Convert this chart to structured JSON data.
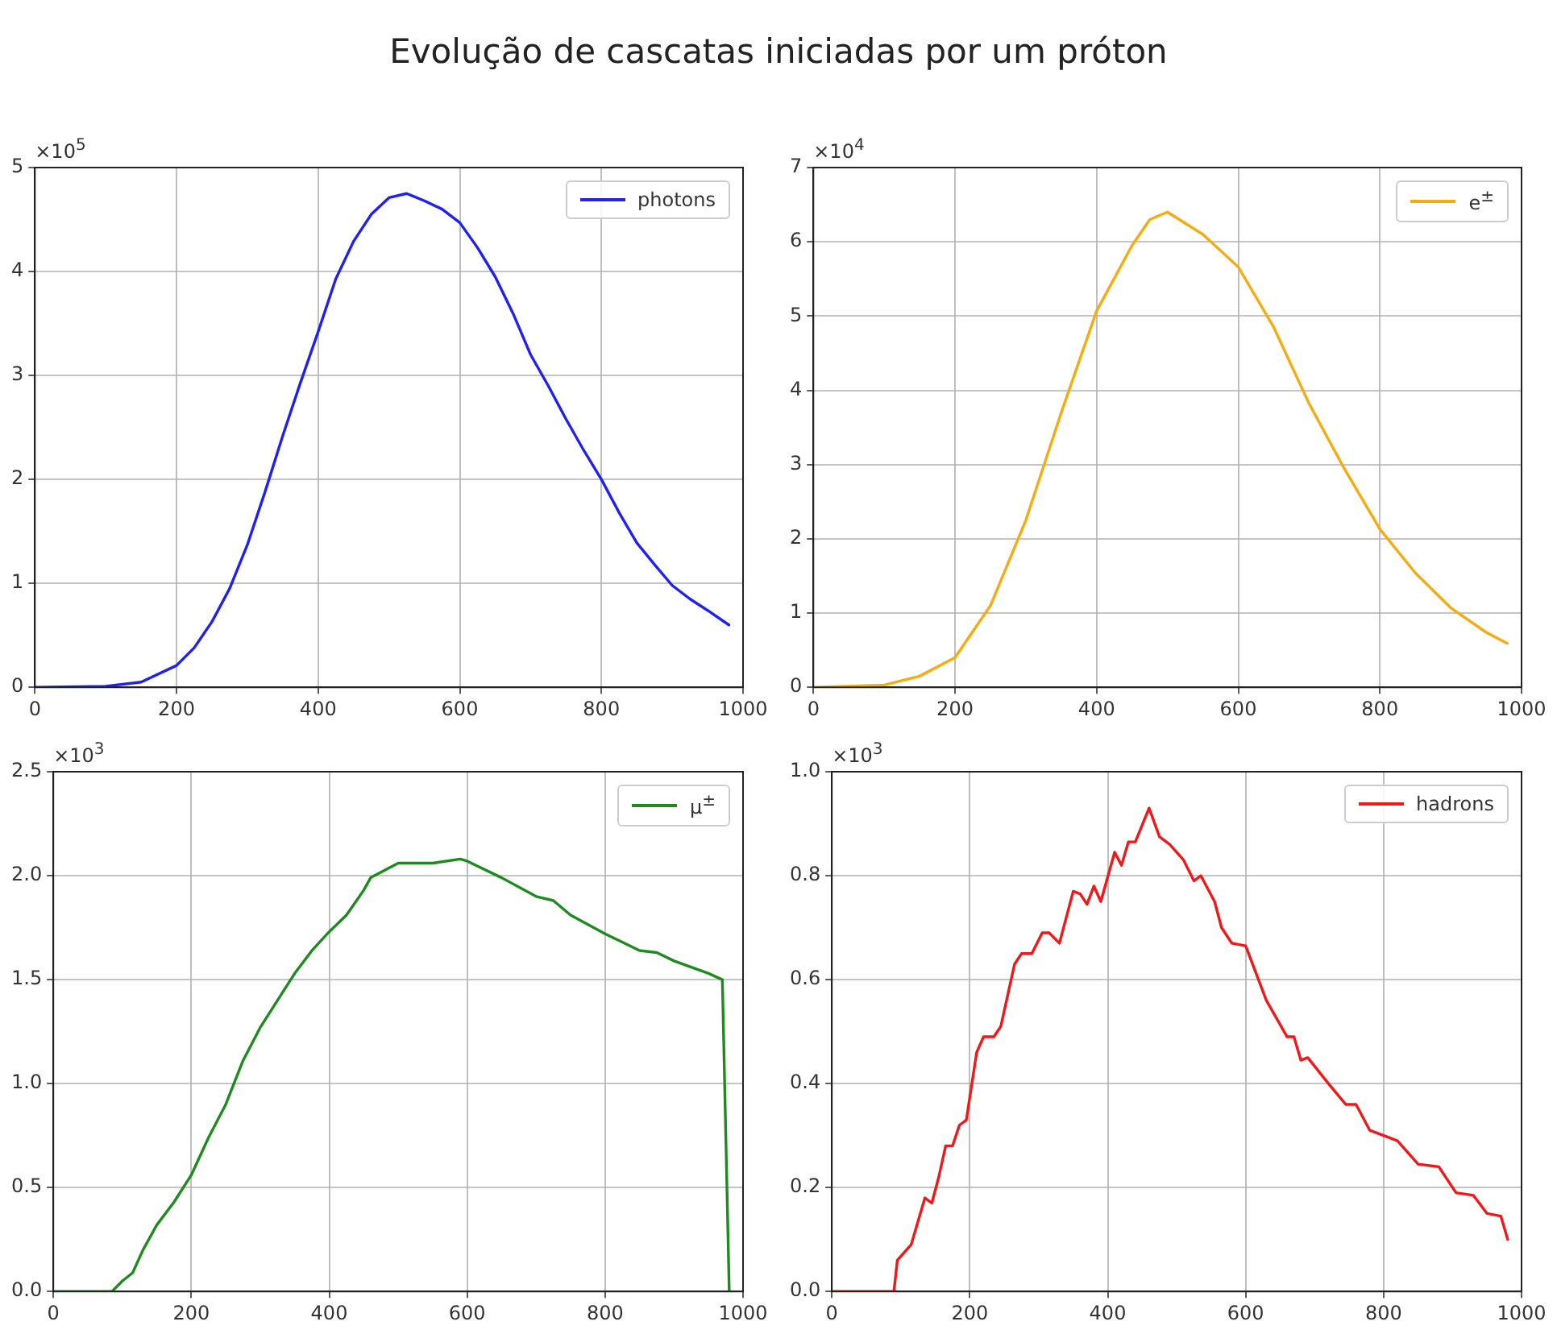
{
  "chart_data": [
    {
      "type": "line",
      "title": "Evolução de cascatas iniciadas por um próton",
      "ylabel": "×10$^{5}$",
      "xlim": [
        0,
        1000
      ],
      "xticks": [
        0,
        200,
        400,
        600,
        800,
        1000
      ],
      "ylim": [
        0,
        5
      ],
      "yticks": [
        0,
        1,
        2,
        3,
        4,
        5
      ],
      "grid": true,
      "legend": "top right",
      "x": [
        0,
        100,
        150,
        200,
        225,
        250,
        275,
        300,
        325,
        350,
        375,
        400,
        425,
        450,
        475,
        500,
        525,
        550,
        575,
        600,
        625,
        650,
        675,
        700,
        725,
        750,
        775,
        800,
        825,
        850,
        875,
        900,
        925,
        950,
        980
      ],
      "series": [
        {
          "name": "photons",
          "color": "#2020f0",
          "values": [
            0,
            0.01,
            0.05,
            0.21,
            0.38,
            0.63,
            0.95,
            1.37,
            1.88,
            2.42,
            2.93,
            3.42,
            3.93,
            4.29,
            4.55,
            4.71,
            4.75,
            4.68,
            4.6,
            4.47,
            4.23,
            3.95,
            3.6,
            3.2,
            2.9,
            2.58,
            2.28,
            2.0,
            1.68,
            1.39,
            1.18,
            0.98,
            0.85,
            0.74,
            0.6
          ]
        }
      ]
    },
    {
      "type": "line",
      "ylabel": "×10$^{4}$",
      "xlim": [
        0,
        1000
      ],
      "xticks": [
        0,
        200,
        400,
        600,
        800,
        1000
      ],
      "ylim": [
        0,
        7
      ],
      "yticks": [
        0,
        1,
        2,
        3,
        4,
        5,
        6,
        7
      ],
      "grid": true,
      "legend": "top right",
      "x": [
        0,
        100,
        150,
        200,
        250,
        300,
        350,
        400,
        450,
        475,
        500,
        550,
        600,
        650,
        700,
        750,
        800,
        850,
        900,
        950,
        980
      ],
      "series": [
        {
          "name": "e$^{±}$",
          "color": "#f5ac10",
          "values": [
            0,
            0.03,
            0.15,
            0.4,
            1.1,
            2.25,
            3.7,
            5.07,
            5.95,
            6.3,
            6.4,
            6.1,
            5.66,
            4.85,
            3.82,
            2.94,
            2.13,
            1.54,
            1.07,
            0.74,
            0.59
          ]
        }
      ]
    },
    {
      "type": "line",
      "ylabel": "×10$^{3}$",
      "xlim": [
        0,
        1000
      ],
      "xticks": [
        0,
        200,
        400,
        600,
        800,
        1000
      ],
      "ylim": [
        0,
        2.5
      ],
      "yticks": [
        {
          "value": 0,
          "label": "0.0"
        },
        0.5,
        {
          "value": 1,
          "label": "1.0"
        },
        1.5,
        {
          "value": 2,
          "label": "2.0"
        },
        2.5
      ],
      "grid": true,
      "legend": "top right",
      "x": [
        0,
        85,
        100,
        115,
        130,
        150,
        175,
        200,
        225,
        250,
        275,
        300,
        325,
        350,
        375,
        400,
        425,
        450,
        460,
        500,
        550,
        590,
        600,
        650,
        700,
        725,
        750,
        800,
        850,
        875,
        900,
        950,
        970,
        980
      ],
      "series": [
        {
          "name": "μ$^{±}$",
          "color": "#1f8a1f",
          "values": [
            0,
            0,
            0.05,
            0.09,
            0.2,
            0.32,
            0.43,
            0.56,
            0.74,
            0.9,
            1.11,
            1.27,
            1.4,
            1.53,
            1.64,
            1.73,
            1.81,
            1.93,
            1.99,
            2.06,
            2.06,
            2.08,
            2.07,
            1.99,
            1.9,
            1.88,
            1.81,
            1.72,
            1.64,
            1.63,
            1.59,
            1.53,
            1.5,
            0
          ]
        }
      ]
    },
    {
      "type": "line",
      "ylabel": "×10$^{3}$",
      "xlim": [
        0,
        1000
      ],
      "xticks": [
        0,
        200,
        400,
        600,
        800,
        1000
      ],
      "ylim": [
        0,
        1
      ],
      "yticks": [
        {
          "value": 0,
          "label": "0.0"
        },
        0.2,
        0.4,
        0.6,
        0.8,
        {
          "value": 1,
          "label": "1.0"
        }
      ],
      "grid": true,
      "legend": "top right",
      "x": [
        0,
        90,
        95,
        115,
        135,
        145,
        155,
        165,
        175,
        185,
        195,
        210,
        220,
        235,
        245,
        265,
        275,
        290,
        305,
        315,
        330,
        350,
        360,
        370,
        380,
        390,
        410,
        420,
        430,
        440,
        460,
        475,
        490,
        510,
        525,
        535,
        555,
        565,
        580,
        600,
        630,
        660,
        670,
        680,
        690,
        720,
        745,
        760,
        780,
        800,
        820,
        850,
        880,
        905,
        930,
        950,
        970,
        980
      ],
      "series": [
        {
          "name": "hadrons",
          "color": "#f01818",
          "values": [
            0,
            0,
            0.06,
            0.09,
            0.18,
            0.17,
            0.22,
            0.28,
            0.28,
            0.32,
            0.33,
            0.46,
            0.49,
            0.49,
            0.51,
            0.63,
            0.65,
            0.65,
            0.69,
            0.69,
            0.67,
            0.77,
            0.765,
            0.745,
            0.78,
            0.75,
            0.845,
            0.82,
            0.865,
            0.865,
            0.93,
            0.875,
            0.86,
            0.83,
            0.79,
            0.8,
            0.75,
            0.7,
            0.67,
            0.665,
            0.56,
            0.49,
            0.49,
            0.445,
            0.45,
            0.4,
            0.36,
            0.36,
            0.31,
            0.3,
            0.29,
            0.245,
            0.24,
            0.19,
            0.185,
            0.15,
            0.145,
            0.1
          ]
        }
      ]
    }
  ]
}
